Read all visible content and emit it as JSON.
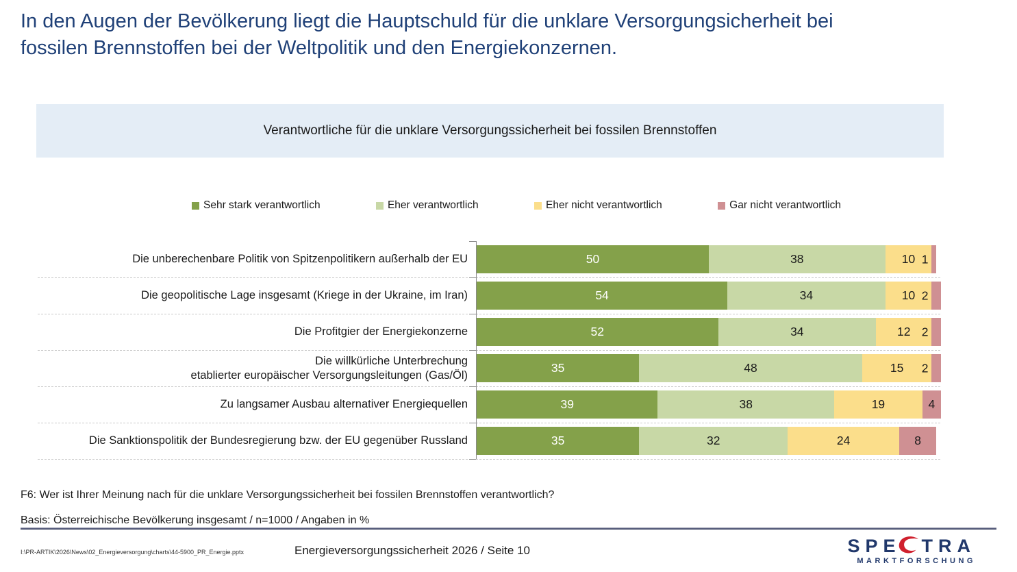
{
  "slide": {
    "title": "In den Augen der Bevölkerung liegt die Hauptschuld für die unklare Versorgungsicherheit bei fossilen Brennstoffen bei der Weltpolitik und den Energiekonzernen.",
    "title_color": "#1F4077",
    "chart_header": "Verantwortliche für die unklare Versorgungssicherheit bei fossilen Brennstoffen",
    "chart_header_bg": "#E4EDF6",
    "footnote_question": "F6: Wer ist Ihrer Meinung nach für die unklare Versorgungssicherheit bei fossilen Brennstoffen verantwortlich?",
    "footnote_basis": "Basis: Österreichische Bevölkerung insgesamt / n=1000 / Angaben in %",
    "footer": {
      "file_path": "I:\\PR-ARTIK\\2026\\News\\02_Energieversorgung\\charts\\44-5900_PR_Energie.pptx",
      "center_text": "Energieversorgungssicherheit 2026  /  Seite 10",
      "logo": {
        "part1": "SPE",
        "part2": "TRA",
        "subtitle": "MARKTFORSCHUNG",
        "text_color": "#21386B",
        "accent_color": "#D0202E"
      }
    }
  },
  "chart_data": {
    "type": "bar",
    "orientation": "horizontal",
    "stacked": true,
    "title": "Verantwortliche für die unklare Versorgungssicherheit bei fossilen Brennstoffen",
    "unit": "%",
    "xlim": [
      0,
      100
    ],
    "legend_position": "top",
    "grid": "dashed-row-separators",
    "categories": [
      "Die unberechenbare Politik von Spitzenpolitikern außerhalb der EU",
      "Die geopolitische Lage insgesamt (Kriege in der Ukraine, im Iran)",
      "Die Profitgier der Energiekonzerne",
      "Die willkürliche Unterbrechung\netablierter europäischer Versorgungsleitungen (Gas/Öl)",
      "Zu langsamer Ausbau alternativer Energiequellen",
      "Die Sanktionspolitik der Bundesregierung bzw. der EU gegenüber Russland"
    ],
    "series": [
      {
        "name": "Sehr stark verantwortlich",
        "color": "#84A14A",
        "values": [
          50,
          54,
          52,
          35,
          39,
          35
        ]
      },
      {
        "name": "Eher verantwortlich",
        "color": "#C8D8A6",
        "values": [
          38,
          34,
          34,
          48,
          38,
          32
        ]
      },
      {
        "name": "Eher nicht verantwortlich",
        "color": "#FBDE8B",
        "values": [
          10,
          10,
          12,
          15,
          19,
          24
        ]
      },
      {
        "name": "Gar nicht verantwortlich",
        "color": "#CF9093",
        "values": [
          1,
          2,
          2,
          2,
          4,
          8
        ]
      }
    ]
  }
}
